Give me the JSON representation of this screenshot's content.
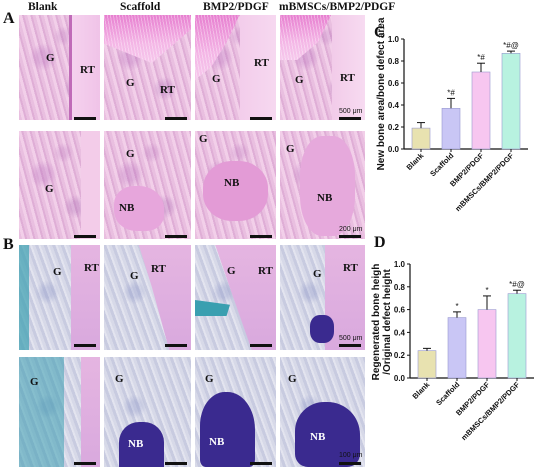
{
  "panel_labels": {
    "a": "A",
    "b": "B",
    "c": "C",
    "d": "D"
  },
  "columns": [
    "Blank",
    "Scaffold",
    "BMP2/PDGF",
    "mBMSCs/BMP2/PDGF"
  ],
  "tissue_labels": {
    "g": "G",
    "rt": "RT",
    "nb": "NB"
  },
  "scale_labels": {
    "s500": "500 μm",
    "s200": "200 μm",
    "s100": "100 μm"
  },
  "colors": {
    "blank": "#e8e2b0",
    "scaffold": "#c9c6f5",
    "bmp": "#f7c6f0",
    "mbmsc": "#b8f2e0"
  },
  "chart_data": [
    {
      "type": "bar",
      "panel": "C",
      "ylabel": "New bone area/bone defect area",
      "categories": [
        "Blank",
        "Scaffold",
        "BMP2/PDGF",
        "mBMSCs/BMP2/PDGF"
      ],
      "values": [
        0.19,
        0.37,
        0.7,
        0.87
      ],
      "errors": [
        0.05,
        0.09,
        0.08,
        0.02
      ],
      "annotations": [
        "",
        "*#",
        "*#",
        "*#@"
      ],
      "ylim": [
        0,
        1.0
      ],
      "yticks": [
        "0.0",
        "0.2",
        "0.4",
        "0.6",
        "0.8",
        "1.0"
      ]
    },
    {
      "type": "bar",
      "panel": "D",
      "ylabel": "Regenerated bone height/Original defect height",
      "categories": [
        "Blank",
        "Scaffold",
        "BMP2/PDGF",
        "mBMSCs/BMP2/PDGF"
      ],
      "values": [
        0.24,
        0.53,
        0.6,
        0.74
      ],
      "errors": [
        0.02,
        0.05,
        0.12,
        0.03
      ],
      "annotations": [
        "",
        "*",
        "*",
        "*#@"
      ],
      "ylim": [
        0,
        1.0
      ],
      "yticks": [
        "0.0",
        "0.2",
        "0.4",
        "0.6",
        "0.8",
        "1.0"
      ]
    }
  ]
}
